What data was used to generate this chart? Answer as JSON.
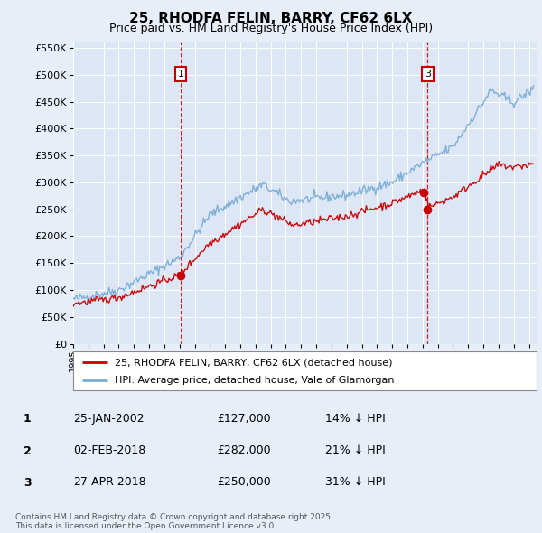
{
  "title": "25, RHODFA FELIN, BARRY, CF62 6LX",
  "subtitle": "Price paid vs. HM Land Registry's House Price Index (HPI)",
  "legend_red": "25, RHODFA FELIN, BARRY, CF62 6LX (detached house)",
  "legend_blue": "HPI: Average price, detached house, Vale of Glamorgan",
  "footer": "Contains HM Land Registry data © Crown copyright and database right 2025.\nThis data is licensed under the Open Government Licence v3.0.",
  "transactions": [
    {
      "num": 1,
      "date": "25-JAN-2002",
      "price": 127000,
      "pct": "14%",
      "dir": "↓"
    },
    {
      "num": 2,
      "date": "02-FEB-2018",
      "price": 282000,
      "pct": "21%",
      "dir": "↓"
    },
    {
      "num": 3,
      "date": "27-APR-2018",
      "price": 250000,
      "pct": "31%",
      "dir": "↓"
    }
  ],
  "marker_dates": [
    2002.07,
    2018.09,
    2018.33
  ],
  "marker_prices": [
    127000,
    282000,
    250000
  ],
  "vline_dates": [
    2002.07,
    2018.33
  ],
  "vline_labels": [
    "1",
    "3"
  ],
  "ylim": [
    0,
    560000
  ],
  "yticks": [
    0,
    50000,
    100000,
    150000,
    200000,
    250000,
    300000,
    350000,
    400000,
    450000,
    500000,
    550000
  ],
  "background_color": "#e8eef8",
  "plot_bg": "#dde6f5",
  "red_color": "#cc0000",
  "blue_color": "#7aadd4",
  "grid_color": "#ffffff"
}
